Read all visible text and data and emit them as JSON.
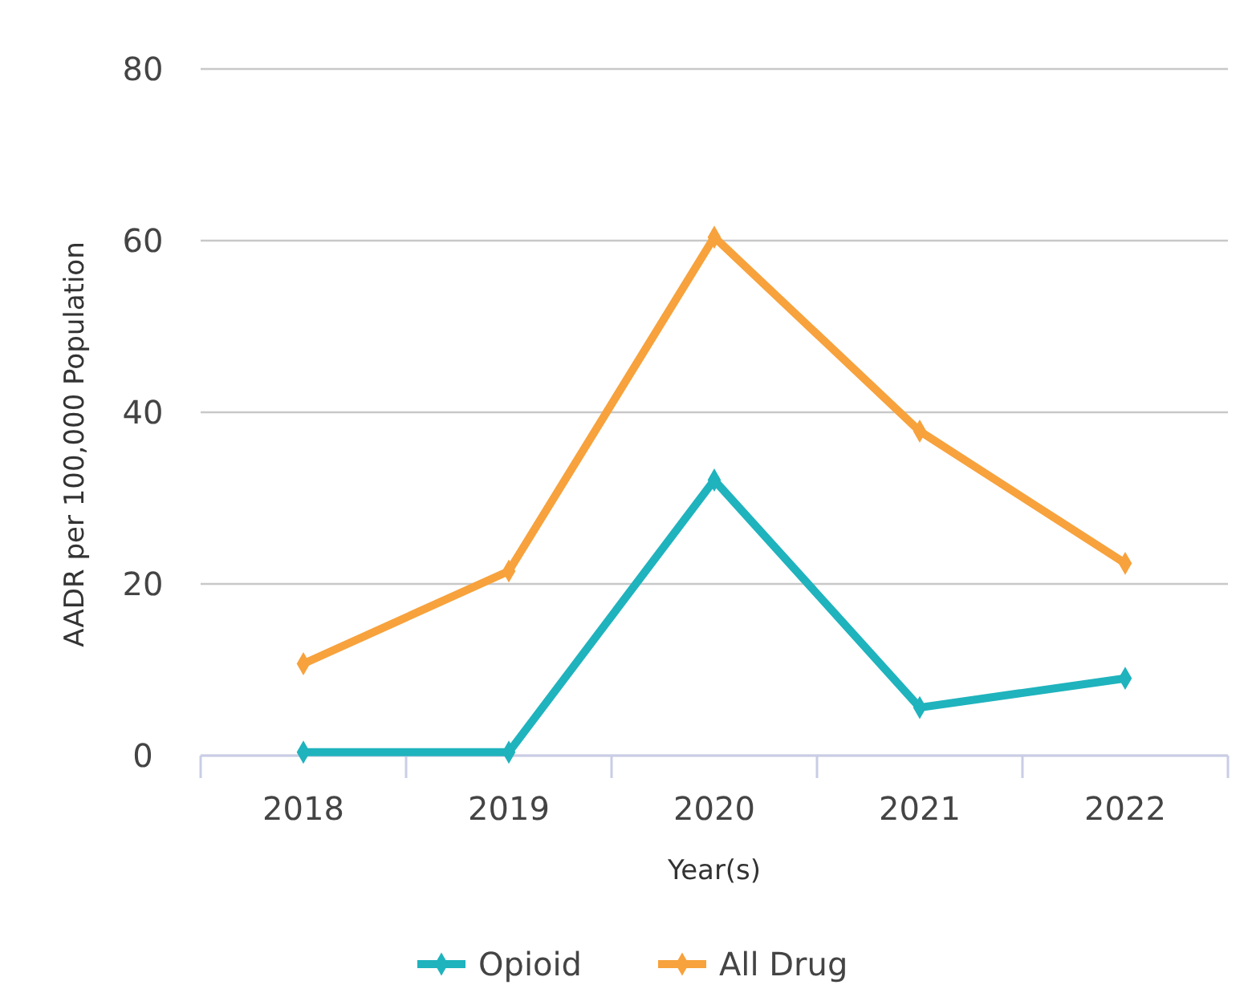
{
  "chart_data": {
    "type": "line",
    "xlabel": "Year(s)",
    "ylabel": "AADR per 100,000 Population",
    "categories": [
      "2018",
      "2019",
      "2020",
      "2021",
      "2022"
    ],
    "series": [
      {
        "name": "Opioid",
        "color": "#1fb3bd",
        "values": [
          0.4,
          0.4,
          32.1,
          5.6,
          9.0
        ]
      },
      {
        "name": "All Drug",
        "color": "#f7a23c",
        "values": [
          10.7,
          21.5,
          60.4,
          37.8,
          22.4
        ]
      }
    ],
    "ylim": [
      0,
      80
    ],
    "yticks": [
      0,
      20,
      40,
      60,
      80
    ],
    "grid": "y",
    "legend": "bottom",
    "marker": "diamond",
    "line_style": "solid"
  }
}
